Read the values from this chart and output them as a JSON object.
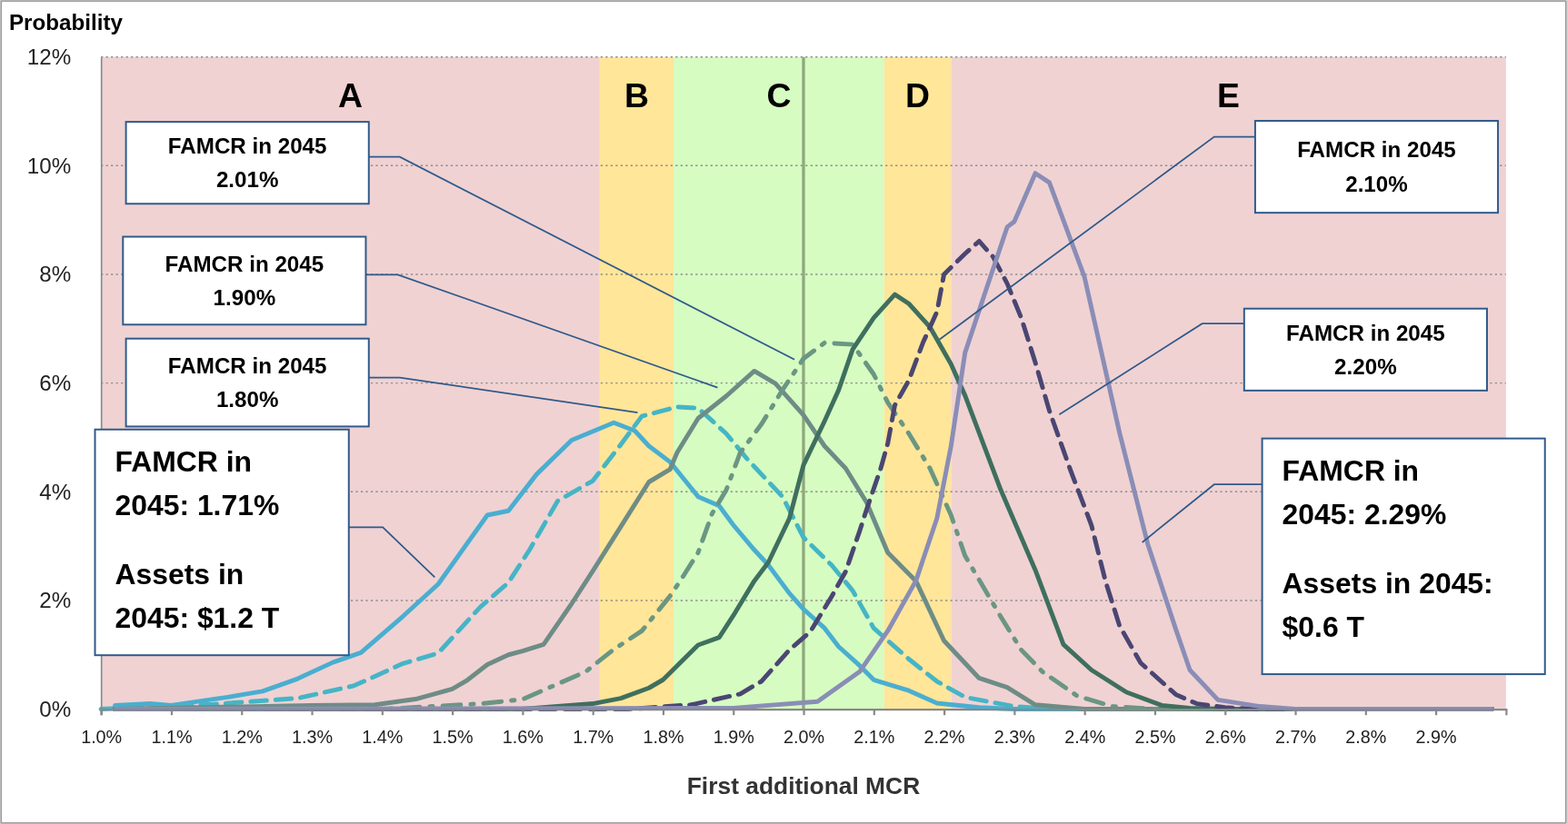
{
  "chart_data": {
    "type": "line",
    "title": "Probability",
    "xlabel": "First additional  MCR",
    "xlim": [
      1.0,
      3.0
    ],
    "ylim": [
      0,
      12
    ],
    "xticks": [
      {
        "value": 1.0,
        "label": "1.0%"
      },
      {
        "value": 1.1,
        "label": "1.1%"
      },
      {
        "value": 1.2,
        "label": "1.2%"
      },
      {
        "value": 1.3,
        "label": "1.3%"
      },
      {
        "value": 1.4,
        "label": "1.4%"
      },
      {
        "value": 1.5,
        "label": "1.5%"
      },
      {
        "value": 1.6,
        "label": "1.6%"
      },
      {
        "value": 1.7,
        "label": "1.7%"
      },
      {
        "value": 1.8,
        "label": "1.8%"
      },
      {
        "value": 1.9,
        "label": "1.9%"
      },
      {
        "value": 2.0,
        "label": "2.0%"
      },
      {
        "value": 2.1,
        "label": "2.1%"
      },
      {
        "value": 2.2,
        "label": "2.2%"
      },
      {
        "value": 2.3,
        "label": "2.3%"
      },
      {
        "value": 2.4,
        "label": "2.4%"
      },
      {
        "value": 2.5,
        "label": "2.5%"
      },
      {
        "value": 2.6,
        "label": "2.6%"
      },
      {
        "value": 2.7,
        "label": "2.7%"
      },
      {
        "value": 2.8,
        "label": "2.8%"
      },
      {
        "value": 2.9,
        "label": "2.9%"
      }
    ],
    "yticks": [
      {
        "value": 0,
        "label": "0%"
      },
      {
        "value": 2,
        "label": "2%"
      },
      {
        "value": 4,
        "label": "4%"
      },
      {
        "value": 6,
        "label": "6%"
      },
      {
        "value": 8,
        "label": "8%"
      },
      {
        "value": 10,
        "label": "10%"
      },
      {
        "value": 12,
        "label": "12%"
      }
    ],
    "grid": "y",
    "bands": [
      {
        "axis": "x",
        "from": 1.0,
        "to": 1.71,
        "label": "A",
        "color": "#f0d2d3"
      },
      {
        "axis": "x",
        "from": 1.71,
        "to": 1.815,
        "label": "B",
        "color": "#ffe699"
      },
      {
        "axis": "x",
        "from": 1.815,
        "to": 2.115,
        "label": "C",
        "color": "#d6fcc2"
      },
      {
        "axis": "x",
        "from": 2.115,
        "to": 2.21,
        "label": "D",
        "color": "#ffe699"
      },
      {
        "axis": "x",
        "from": 2.21,
        "to": 3.0,
        "label": "E",
        "color": "#f0d2d3"
      }
    ],
    "ref_lines": [
      {
        "axis": "x",
        "value": 2.0,
        "color": "#8fa87c"
      }
    ],
    "series": [
      {
        "color": "#4aaed0",
        "line_style": "solid",
        "x": [
          1.02,
          1.07,
          1.1,
          1.18,
          1.23,
          1.28,
          1.33,
          1.37,
          1.43,
          1.48,
          1.55,
          1.58,
          1.62,
          1.67,
          1.73,
          1.76,
          1.78,
          1.81,
          1.85,
          1.88,
          1.9,
          1.93,
          1.95,
          1.98,
          2.0,
          2.03,
          2.05,
          2.08,
          2.1,
          2.15,
          2.19,
          2.25,
          2.3,
          2.98
        ],
        "values": [
          0.07,
          0.1,
          0.07,
          0.22,
          0.33,
          0.56,
          0.86,
          1.04,
          1.71,
          2.3,
          3.57,
          3.65,
          4.32,
          4.95,
          5.27,
          5.12,
          4.84,
          4.55,
          3.91,
          3.74,
          3.39,
          2.93,
          2.65,
          2.13,
          1.84,
          1.49,
          1.15,
          0.8,
          0.54,
          0.34,
          0.11,
          0.03,
          0,
          0
        ]
      },
      {
        "color": "#45b5c5",
        "line_style": "dashed",
        "x": [
          1.0,
          1.16,
          1.28,
          1.36,
          1.43,
          1.48,
          1.54,
          1.58,
          1.61,
          1.65,
          1.7,
          1.74,
          1.77,
          1.82,
          1.85,
          1.89,
          1.92,
          1.97,
          2.0,
          2.04,
          2.07,
          2.1,
          2.15,
          2.19,
          2.23,
          2.3,
          2.36,
          2.98
        ],
        "values": [
          0,
          0.09,
          0.2,
          0.43,
          0.84,
          1.03,
          1.88,
          2.33,
          2.93,
          3.83,
          4.2,
          4.87,
          5.39,
          5.56,
          5.54,
          5.07,
          4.6,
          3.91,
          3.16,
          2.65,
          2.18,
          1.49,
          0.92,
          0.51,
          0.22,
          0.05,
          0,
          0
        ]
      },
      {
        "color": "#6e8c86",
        "line_style": "solid",
        "x": [
          1.02,
          1.3,
          1.39,
          1.45,
          1.5,
          1.52,
          1.55,
          1.58,
          1.6,
          1.63,
          1.67,
          1.7,
          1.74,
          1.78,
          1.81,
          1.82,
          1.85,
          1.89,
          1.93,
          1.96,
          2.0,
          2.03,
          2.06,
          2.09,
          2.12,
          2.16,
          2.2,
          2.25,
          2.29,
          2.33,
          2.4,
          2.98
        ],
        "values": [
          0,
          0.07,
          0.08,
          0.19,
          0.37,
          0.52,
          0.82,
          1.0,
          1.07,
          1.19,
          1.94,
          2.54,
          3.36,
          4.18,
          4.41,
          4.72,
          5.35,
          5.76,
          6.22,
          5.99,
          5.41,
          4.84,
          4.43,
          3.8,
          2.88,
          2.36,
          1.26,
          0.57,
          0.4,
          0.08,
          0,
          0
        ]
      },
      {
        "color": "#6a9683",
        "line_style": "dotted",
        "x": [
          1.02,
          1.4,
          1.54,
          1.6,
          1.69,
          1.73,
          1.77,
          1.81,
          1.83,
          1.85,
          1.87,
          1.89,
          1.91,
          1.94,
          1.97,
          2.0,
          2.03,
          2.07,
          2.1,
          2.12,
          2.15,
          2.18,
          2.21,
          2.23,
          2.28,
          2.31,
          2.34,
          2.39,
          2.44,
          2.5,
          2.98
        ],
        "values": [
          0,
          0,
          0.1,
          0.18,
          0.69,
          1.1,
          1.44,
          2.08,
          2.47,
          2.88,
          3.6,
          4.03,
          4.72,
          5.24,
          5.87,
          6.45,
          6.74,
          6.71,
          6.16,
          5.64,
          5.07,
          4.43,
          3.57,
          2.82,
          1.72,
          1.09,
          0.69,
          0.24,
          0.05,
          0,
          0
        ]
      },
      {
        "color": "#3f6f5e",
        "line_style": "solid",
        "x": [
          1.02,
          1.6,
          1.7,
          1.74,
          1.78,
          1.8,
          1.85,
          1.88,
          1.9,
          1.93,
          1.95,
          1.98,
          2.0,
          2.03,
          2.05,
          2.07,
          2.1,
          2.13,
          2.15,
          2.18,
          2.21,
          2.23,
          2.28,
          2.33,
          2.37,
          2.41,
          2.46,
          2.51,
          2.55,
          2.6,
          2.98
        ],
        "values": [
          0,
          0,
          0.1,
          0.2,
          0.39,
          0.54,
          1.18,
          1.32,
          1.72,
          2.36,
          2.7,
          3.51,
          4.49,
          5.3,
          5.87,
          6.62,
          7.2,
          7.63,
          7.46,
          7.03,
          6.35,
          5.77,
          4.06,
          2.56,
          1.19,
          0.72,
          0.31,
          0.07,
          0.02,
          0,
          0
        ]
      },
      {
        "color": "#4a4672",
        "line_style": "dashed",
        "x": [
          1.02,
          1.75,
          1.84,
          1.91,
          1.94,
          1.98,
          2.01,
          2.04,
          2.06,
          2.08,
          2.09,
          2.11,
          2.12,
          2.13,
          2.15,
          2.17,
          2.19,
          2.2,
          2.23,
          2.25,
          2.27,
          2.29,
          2.31,
          2.33,
          2.35,
          2.38,
          2.41,
          2.43,
          2.45,
          2.48,
          2.53,
          2.56,
          2.6,
          2.65,
          2.98
        ],
        "values": [
          0,
          0,
          0.08,
          0.28,
          0.51,
          1.09,
          1.43,
          2.07,
          2.53,
          3.28,
          3.68,
          4.43,
          4.89,
          5.59,
          6.05,
          6.74,
          7.31,
          8.0,
          8.38,
          8.61,
          8.32,
          7.83,
          7.2,
          6.38,
          5.49,
          4.4,
          3.38,
          2.35,
          1.53,
          0.85,
          0.27,
          0.1,
          0.03,
          0,
          0
        ]
      },
      {
        "color": "#8a8db6",
        "line_style": "solid",
        "x": [
          1.02,
          1.9,
          2.02,
          2.08,
          2.12,
          2.16,
          2.19,
          2.21,
          2.23,
          2.26,
          2.29,
          2.3,
          2.33,
          2.35,
          2.4,
          2.45,
          2.49,
          2.53,
          2.55,
          2.59,
          2.65,
          2.7,
          2.98
        ],
        "values": [
          0,
          0.02,
          0.14,
          0.69,
          1.44,
          2.36,
          3.51,
          4.84,
          6.56,
          7.72,
          8.87,
          8.97,
          9.86,
          9.69,
          7.95,
          5.08,
          3.04,
          1.47,
          0.72,
          0.17,
          0.05,
          0,
          0
        ]
      }
    ],
    "annotations": [
      "FAMCR in 2045\n2.01%",
      "FAMCR in 2045\n1.90%",
      "FAMCR in 2045\n1.80%",
      "FAMCR in\n2045: 1.71%\n\nAssets in\n2045: $1.2 T",
      "FAMCR in 2045\n2.10%",
      "FAMCR in 2045\n2.20%",
      "FAMCR in\n2045: 2.29%\n\nAssets in 2045:\n$0.6 T"
    ]
  }
}
